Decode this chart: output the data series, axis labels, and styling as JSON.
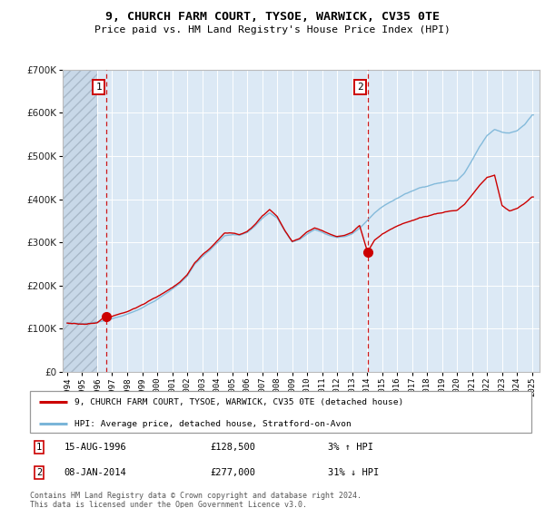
{
  "title": "9, CHURCH FARM COURT, TYSOE, WARWICK, CV35 0TE",
  "subtitle": "Price paid vs. HM Land Registry's House Price Index (HPI)",
  "ylim": [
    0,
    700000
  ],
  "yticks": [
    0,
    100000,
    200000,
    300000,
    400000,
    500000,
    600000,
    700000
  ],
  "ytick_labels": [
    "£0",
    "£100K",
    "£200K",
    "£300K",
    "£400K",
    "£500K",
    "£600K",
    "£700K"
  ],
  "xlim_start": 1993.7,
  "xlim_end": 2025.5,
  "hatch_end": 1996.0,
  "sale1_date": 1996.62,
  "sale1_price": 128500,
  "sale2_date": 2014.03,
  "sale2_price": 277000,
  "hpi_color": "#7ab5d8",
  "price_color": "#cc0000",
  "legend_label_price": "9, CHURCH FARM COURT, TYSOE, WARWICK, CV35 0TE (detached house)",
  "legend_label_hpi": "HPI: Average price, detached house, Stratford-on-Avon",
  "annotation1": [
    "1",
    "15-AUG-1996",
    "£128,500",
    "3% ↑ HPI"
  ],
  "annotation2": [
    "2",
    "08-JAN-2014",
    "£277,000",
    "31% ↓ HPI"
  ],
  "footer": "Contains HM Land Registry data © Crown copyright and database right 2024.\nThis data is licensed under the Open Government Licence v3.0.",
  "bg_color": "#dce9f5",
  "grid_color": "#ffffff"
}
